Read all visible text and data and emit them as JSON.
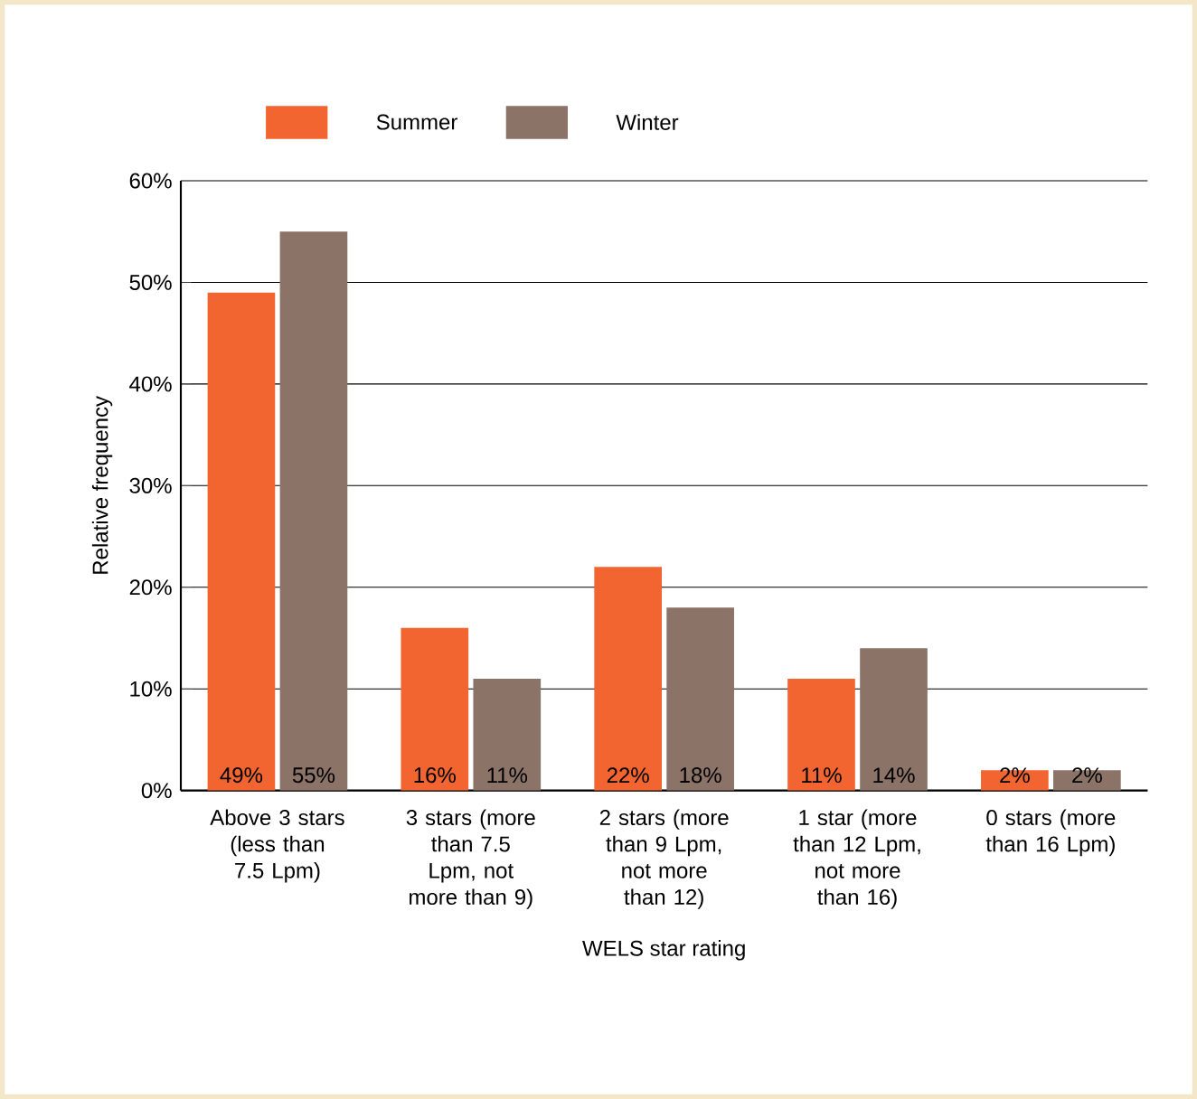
{
  "chart_data": {
    "type": "bar",
    "xlabel": "WELS star rating",
    "ylabel": "Relative frequency",
    "categories": [
      "Above 3 stars (less than 7.5 Lpm)",
      "3 stars (more than 7.5 Lpm, not more than 9)",
      "2 stars (more than 9 Lpm, not more than 12)",
      "1 star (more than 12 Lpm, not more than 16)",
      "0 stars (more than 16 Lpm)"
    ],
    "series": [
      {
        "name": "Summer",
        "color": "#f26430",
        "values": [
          49,
          16,
          22,
          11,
          2
        ],
        "value_labels": [
          "49%",
          "16%",
          "22%",
          "11%",
          "2%"
        ]
      },
      {
        "name": "Winter",
        "color": "#8b7368",
        "values": [
          55,
          11,
          18,
          14,
          2
        ],
        "value_labels": [
          "55%",
          "11%",
          "18%",
          "14%",
          "2%"
        ]
      }
    ],
    "ylim": [
      0,
      60
    ],
    "yticks": [
      {
        "value": 0,
        "label": "0%"
      },
      {
        "value": 10,
        "label": "10%"
      },
      {
        "value": 20,
        "label": "20%"
      },
      {
        "value": 30,
        "label": "30%"
      },
      {
        "value": 40,
        "label": "40%"
      },
      {
        "value": 50,
        "label": "50%"
      },
      {
        "value": 60,
        "label": "60%"
      }
    ],
    "grid": "y",
    "legend": "top"
  }
}
